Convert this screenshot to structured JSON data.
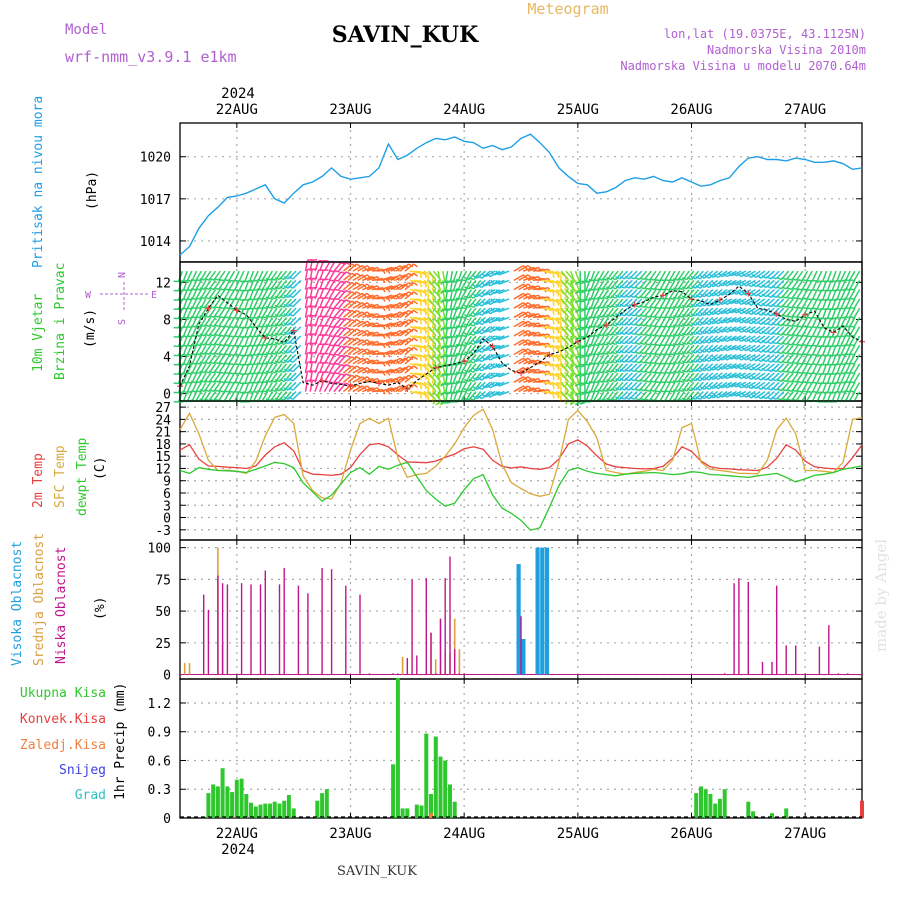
{
  "header": {
    "model_label": "Model",
    "model_name": "wrf-nmm_v3.9.1 e1km",
    "station": "SAVIN_KUK",
    "product": "Meteogram",
    "lonlat": "lon,lat (19.0375E, 43.1125N)",
    "elev": "Nadmorska Visina 2010m",
    "elev_model": "Nadmorska Visina u modelu 2070.64m",
    "year_top": "2024",
    "year_bottom": "2024",
    "footer_station": "SAVIN_KUK",
    "watermark": "made by Angel"
  },
  "colors": {
    "pressure": "#1e9fe6",
    "temp2m": "#e8403f",
    "sfc": "#d9a93c",
    "dewpt": "#2ec82e",
    "cloud_high": "#1ea0e0",
    "cloud_mid": "#d9a040",
    "cloud_low": "#c0148c",
    "precip_total": "#2ec82e",
    "precip_conv": "#e8403f",
    "precip_frozen": "#f08040",
    "snow": "#4040e0",
    "hail": "#30c0c0"
  },
  "chart_data": [
    {
      "type": "line",
      "panel": "pressure",
      "ylabel_main": "Pritisak na nivou mora",
      "ylabel_unit": "(hPa)",
      "yticks": [
        1014,
        1017,
        1020
      ],
      "ylim": [
        1012.5,
        1022.4
      ],
      "xlim": [
        0,
        144
      ],
      "x_hours_step": 2,
      "x": [
        0,
        2,
        4,
        6,
        8,
        10,
        12,
        14,
        16,
        18,
        20,
        22,
        24,
        26,
        28,
        30,
        32,
        34,
        36,
        38,
        40,
        42,
        44,
        46,
        48,
        50,
        52,
        54,
        56,
        58,
        60,
        62,
        64,
        66,
        68,
        70,
        72,
        74,
        76,
        78,
        80,
        82,
        84,
        86,
        88,
        90,
        92,
        94,
        96,
        98,
        100,
        102,
        104,
        106,
        108,
        110,
        112,
        114,
        116,
        118,
        120,
        122,
        124,
        126,
        128,
        130,
        132,
        134,
        136,
        138,
        140,
        142,
        144
      ],
      "values": [
        1013.0,
        1013.6,
        1014.9,
        1015.8,
        1016.4,
        1017.1,
        1017.2,
        1017.4,
        1017.7,
        1018.0,
        1017.0,
        1016.7,
        1017.4,
        1018.0,
        1018.2,
        1018.6,
        1019.2,
        1018.6,
        1018.4,
        1018.5,
        1018.6,
        1019.2,
        1020.9,
        1019.8,
        1020.1,
        1020.6,
        1021.0,
        1021.3,
        1021.2,
        1021.4,
        1021.1,
        1021.0,
        1020.6,
        1020.8,
        1020.5,
        1020.7,
        1021.3,
        1021.6,
        1021.0,
        1020.3,
        1019.2,
        1018.6,
        1018.1,
        1018.0,
        1017.4,
        1017.5,
        1017.8,
        1018.3,
        1018.5,
        1018.4,
        1018.6,
        1018.3,
        1018.2,
        1018.5,
        1018.2,
        1017.9,
        1018.0,
        1018.3,
        1018.5,
        1019.3,
        1019.9,
        1020.0,
        1019.8,
        1019.8,
        1019.7,
        1019.9,
        1019.8,
        1019.6,
        1019.6,
        1019.7,
        1019.5,
        1019.1,
        1019.2
      ]
    },
    {
      "type": "line",
      "panel": "wind",
      "ylabel_main": "10m Vjetar",
      "ylabel_sub": "Brzina i Pravac",
      "ylabel_unit": "(m/s)",
      "compass_labels": [
        "N",
        "W",
        "E",
        "S"
      ],
      "yticks": [
        0,
        4,
        8,
        12
      ],
      "ylim": [
        -0.8,
        14.2
      ],
      "xlim": [
        0,
        144
      ],
      "x": [
        0,
        2,
        4,
        6,
        8,
        10,
        12,
        14,
        16,
        18,
        20,
        22,
        24,
        26,
        28,
        30,
        32,
        34,
        36,
        38,
        40,
        42,
        44,
        46,
        48,
        50,
        52,
        54,
        56,
        58,
        60,
        62,
        64,
        66,
        68,
        70,
        72,
        74,
        76,
        78,
        80,
        82,
        84,
        86,
        88,
        90,
        92,
        94,
        96,
        98,
        100,
        102,
        104,
        106,
        108,
        110,
        112,
        114,
        116,
        118,
        120,
        122,
        124,
        126,
        128,
        130,
        132,
        134,
        136,
        138,
        140,
        142,
        144
      ],
      "speed": [
        0.8,
        3.0,
        7.5,
        9.2,
        10.6,
        9.8,
        9.0,
        8.5,
        7.2,
        6.0,
        5.9,
        5.5,
        6.8,
        1.2,
        0.9,
        1.4,
        1.1,
        1.0,
        0.8,
        1.1,
        1.3,
        1.1,
        0.9,
        1.2,
        0.5,
        1.4,
        2.1,
        2.8,
        3.0,
        3.2,
        3.5,
        4.3,
        5.9,
        5.1,
        3.3,
        2.5,
        2.2,
        2.8,
        3.4,
        4.2,
        4.5,
        5.0,
        5.6,
        6.1,
        6.9,
        7.4,
        8.2,
        9.0,
        9.6,
        9.9,
        10.4,
        10.6,
        11.1,
        11.0,
        10.2,
        10.0,
        9.6,
        10.1,
        10.7,
        11.6,
        10.8,
        9.2,
        9.0,
        8.6,
        8.0,
        7.8,
        8.5,
        8.9,
        7.1,
        6.6,
        7.3,
        6.1,
        5.6
      ],
      "direction_deg": [
        200,
        205,
        210,
        215,
        215,
        210,
        205,
        200,
        205,
        210,
        215,
        220,
        225,
        10,
        20,
        30,
        40,
        50,
        60,
        70,
        80,
        70,
        60,
        50,
        100,
        120,
        140,
        170,
        190,
        200,
        210,
        220,
        230,
        240,
        250,
        60,
        70,
        80,
        100,
        120,
        140,
        160,
        180,
        200,
        210,
        215,
        220,
        225,
        225,
        220,
        215,
        210,
        210,
        215,
        220,
        225,
        230,
        235,
        240,
        245,
        240,
        235,
        230,
        225,
        220,
        215,
        210,
        205,
        200,
        200,
        205,
        210,
        215
      ]
    },
    {
      "type": "line",
      "panel": "temperature",
      "ylabel_a": "2m Temp",
      "ylabel_b": "SFC Temp",
      "ylabel_c": "dewpt Temp",
      "ylabel_unit": "(C)",
      "yticks": [
        -3,
        0,
        3,
        6,
        9,
        12,
        15,
        18,
        21,
        24,
        27
      ],
      "ylim": [
        -5.5,
        28.5
      ],
      "xlim": [
        0,
        144
      ],
      "x": [
        0,
        2,
        4,
        6,
        8,
        10,
        12,
        14,
        16,
        18,
        20,
        22,
        24,
        26,
        28,
        30,
        32,
        34,
        36,
        38,
        40,
        42,
        44,
        46,
        48,
        50,
        52,
        54,
        56,
        58,
        60,
        62,
        64,
        66,
        68,
        70,
        72,
        74,
        76,
        78,
        80,
        82,
        84,
        86,
        88,
        90,
        92,
        94,
        96,
        98,
        100,
        102,
        104,
        106,
        108,
        110,
        112,
        114,
        116,
        118,
        120,
        122,
        124,
        126,
        128,
        130,
        132,
        134,
        136,
        138,
        140,
        142,
        144
      ],
      "series": [
        {
          "name": "2m Temp",
          "values": [
            16.5,
            17.8,
            14.3,
            12.6,
            12.5,
            12.3,
            12.2,
            12.0,
            12.6,
            15.3,
            17.3,
            18.3,
            16.3,
            11.5,
            10.6,
            10.5,
            10.3,
            10.6,
            12.2,
            15.4,
            17.8,
            18.1,
            17.3,
            15.3,
            13.6,
            13.5,
            13.4,
            13.8,
            14.7,
            15.5,
            16.8,
            17.3,
            16.7,
            14.0,
            12.5,
            12.1,
            12.4,
            12.0,
            11.8,
            12.2,
            14.3,
            18.0,
            19.0,
            17.5,
            15.1,
            13.1,
            12.4,
            12.2,
            12.0,
            11.9,
            12.0,
            12.5,
            14.5,
            17.3,
            16.2,
            13.8,
            12.4,
            12.0,
            11.9,
            11.7,
            11.6,
            11.5,
            12.3,
            14.5,
            17.8,
            16.5,
            13.8,
            12.4,
            12.1,
            11.9,
            12.0,
            14.6,
            17.8
          ]
        },
        {
          "name": "SFC Temp",
          "values": [
            21.5,
            25.5,
            20.5,
            14.0,
            11.5,
            11.6,
            11.3,
            10.8,
            13.8,
            20.0,
            24.5,
            25.2,
            23.0,
            10.2,
            6.6,
            4.8,
            4.5,
            8.5,
            16.5,
            23.0,
            24.3,
            23.0,
            24.3,
            14.5,
            9.8,
            10.5,
            10.8,
            12.5,
            15.0,
            18.0,
            22.0,
            25.0,
            26.5,
            21.5,
            13.0,
            8.5,
            7.1,
            5.8,
            5.2,
            5.7,
            13.5,
            24.0,
            26.2,
            23.5,
            19.5,
            11.5,
            11.0,
            10.6,
            11.0,
            11.3,
            11.8,
            11.5,
            14.0,
            22.0,
            23.0,
            13.5,
            11.8,
            11.5,
            11.2,
            10.8,
            10.8,
            10.7,
            14.0,
            21.5,
            24.3,
            20.5,
            11.5,
            11.5,
            11.3,
            11.0,
            13.5,
            24.0,
            24.4
          ]
        },
        {
          "name": "dewpt Temp",
          "values": [
            11.5,
            10.8,
            12.2,
            11.8,
            11.5,
            11.4,
            11.3,
            11.0,
            11.8,
            12.6,
            13.5,
            13.2,
            12.2,
            8.5,
            6.3,
            4.0,
            5.5,
            8.2,
            11.0,
            12.2,
            10.6,
            12.5,
            11.8,
            12.8,
            13.5,
            10.0,
            6.6,
            4.5,
            2.8,
            3.5,
            6.8,
            9.5,
            10.5,
            5.5,
            2.3,
            1.0,
            -0.7,
            -3.1,
            -2.5,
            2.5,
            7.8,
            11.5,
            12.2,
            11.3,
            10.8,
            10.5,
            10.2,
            10.6,
            10.8,
            10.9,
            11.0,
            10.8,
            10.5,
            10.7,
            11.2,
            11.0,
            10.5,
            10.4,
            10.2,
            10.0,
            9.8,
            10.2,
            10.5,
            10.8,
            9.8,
            8.7,
            9.5,
            10.3,
            10.6,
            11.0,
            11.8,
            12.2,
            12.6
          ]
        }
      ]
    },
    {
      "type": "bar",
      "panel": "cloud",
      "ylabel_a": "Visoka Oblacnost",
      "ylabel_b": "Srednja Oblacnost",
      "ylabel_c": "Niska Oblacnost",
      "ylabel_unit": "(%)",
      "yticks": [
        0,
        25,
        50,
        75,
        100
      ],
      "ylim": [
        -3.5,
        106
      ],
      "xlim": [
        0,
        144
      ],
      "series": [
        {
          "name": "Visoka Oblacnost",
          "x": [
            71.5,
            72.5,
            75.5,
            76.5,
            77.5
          ],
          "values": [
            87,
            28,
            100,
            100,
            100
          ]
        },
        {
          "name": "Srednja Oblacnost",
          "x": [
            1,
            2,
            8,
            9,
            47,
            53,
            54,
            55,
            56,
            57,
            58,
            59
          ],
          "values": [
            9,
            9,
            100,
            24,
            14,
            33,
            12,
            44,
            18,
            17,
            44,
            20
          ]
        },
        {
          "name": "Niska Oblacnost",
          "x": [
            5,
            6,
            8,
            9,
            10,
            13,
            15,
            17,
            18,
            21,
            22,
            25,
            27,
            30,
            32,
            35,
            38,
            40,
            45,
            46,
            48,
            49,
            50,
            52,
            53,
            54,
            55,
            56,
            57,
            58,
            59,
            60,
            72,
            115,
            117,
            118,
            120,
            123,
            125,
            126,
            128,
            130,
            132,
            135,
            137,
            139,
            141
          ],
          "values": [
            63,
            51,
            78,
            72,
            71,
            72,
            71,
            71,
            82,
            71,
            84,
            70,
            64,
            84,
            83,
            70,
            63,
            1,
            1,
            1,
            13,
            75,
            15,
            76,
            33,
            1,
            44,
            76,
            93,
            20,
            1,
            1,
            46,
            1,
            72,
            76,
            73,
            10,
            10,
            70,
            23,
            23,
            1,
            22,
            39,
            1,
            1
          ]
        }
      ]
    },
    {
      "type": "bar",
      "panel": "precipitation",
      "legend": [
        "Ukupna Kisa",
        "Konvek.Kisa",
        "Zaledj.Kisa",
        "Snijeg",
        "Grad"
      ],
      "ylabel": "1hr Precip (mm)",
      "yticks": [
        0,
        0.3,
        0.6,
        0.9,
        1.2
      ],
      "ylim": [
        0,
        1.45
      ],
      "xlim": [
        0,
        144
      ],
      "series": [
        {
          "name": "Ukupna Kisa",
          "x": [
            6,
            7,
            8,
            9,
            10,
            11,
            12,
            13,
            14,
            15,
            16,
            17,
            18,
            19,
            20,
            21,
            22,
            23,
            24,
            29,
            30,
            31,
            45,
            46,
            47,
            48,
            50,
            51,
            52,
            53,
            54,
            55,
            56,
            57,
            58,
            109,
            110,
            111,
            112,
            113,
            114,
            115,
            120,
            121,
            125,
            128
          ],
          "values": [
            0.26,
            0.35,
            0.33,
            0.52,
            0.33,
            0.27,
            0.4,
            0.41,
            0.25,
            0.16,
            0.12,
            0.14,
            0.15,
            0.15,
            0.17,
            0.15,
            0.18,
            0.24,
            0.1,
            0.18,
            0.26,
            0.3,
            0.56,
            1.46,
            0.1,
            0.1,
            0.14,
            0.13,
            0.88,
            0.25,
            0.85,
            0.64,
            0.6,
            0.35,
            0.17,
            0.26,
            0.33,
            0.3,
            0.25,
            0.15,
            0.2,
            0.3,
            0.17,
            0.07,
            0.05,
            0.1
          ]
        },
        {
          "name": "Konvek.Kisa",
          "x": [
            144
          ],
          "values": [
            0.18
          ]
        },
        {
          "name": "Zaledj.Kisa",
          "x": [
            53
          ],
          "values": [
            0.05
          ]
        }
      ]
    }
  ],
  "x_axis": {
    "day_labels": [
      "22AUG",
      "23AUG",
      "24AUG",
      "25AUG",
      "26AUG",
      "27AUG"
    ],
    "day_hours": [
      12,
      36,
      60,
      84,
      108,
      132
    ]
  }
}
